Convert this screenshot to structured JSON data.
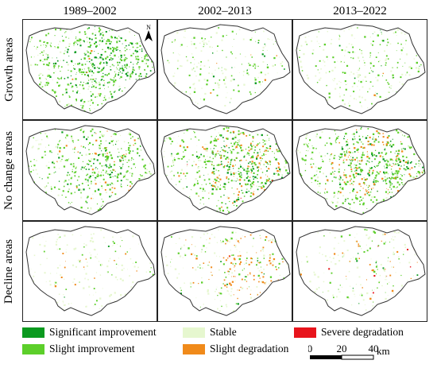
{
  "columns": [
    "1989–2002",
    "2002–2013",
    "2013–2022"
  ],
  "rows": [
    "Growth areas",
    "No change areas",
    "Decline areas"
  ],
  "north_label": "N",
  "legend": [
    {
      "label": "Significant improvement",
      "color": "#0a9a1f"
    },
    {
      "label": "Slight improvement",
      "color": "#5ccf2a"
    },
    {
      "label": "Stable",
      "color": "#e6f7cf"
    },
    {
      "label": "Slight degradation",
      "color": "#f08a1a"
    },
    {
      "label": "Severe degradation",
      "color": "#e8141c"
    }
  ],
  "scale": {
    "ticks": [
      "0",
      "20",
      "40"
    ],
    "unit": "km"
  },
  "panel_intensity": [
    [
      {
        "sig": 0.55,
        "sli": 0.35,
        "deg": 0.02,
        "sev": 0.0
      },
      {
        "sig": 0.05,
        "sli": 0.12,
        "deg": 0.01,
        "sev": 0.0
      },
      {
        "sig": 0.05,
        "sli": 0.18,
        "deg": 0.01,
        "sev": 0.0
      }
    ],
    [
      {
        "sig": 0.2,
        "sli": 0.35,
        "deg": 0.1,
        "sev": 0.01
      },
      {
        "sig": 0.3,
        "sli": 0.4,
        "deg": 0.4,
        "sev": 0.02
      },
      {
        "sig": 0.35,
        "sli": 0.4,
        "deg": 0.45,
        "sev": 0.03
      }
    ],
    [
      {
        "sig": 0.01,
        "sli": 0.04,
        "deg": 0.03,
        "sev": 0.0
      },
      {
        "sig": 0.03,
        "sli": 0.08,
        "deg": 0.3,
        "sev": 0.02
      },
      {
        "sig": 0.02,
        "sli": 0.06,
        "deg": 0.08,
        "sev": 0.01
      }
    ]
  ]
}
